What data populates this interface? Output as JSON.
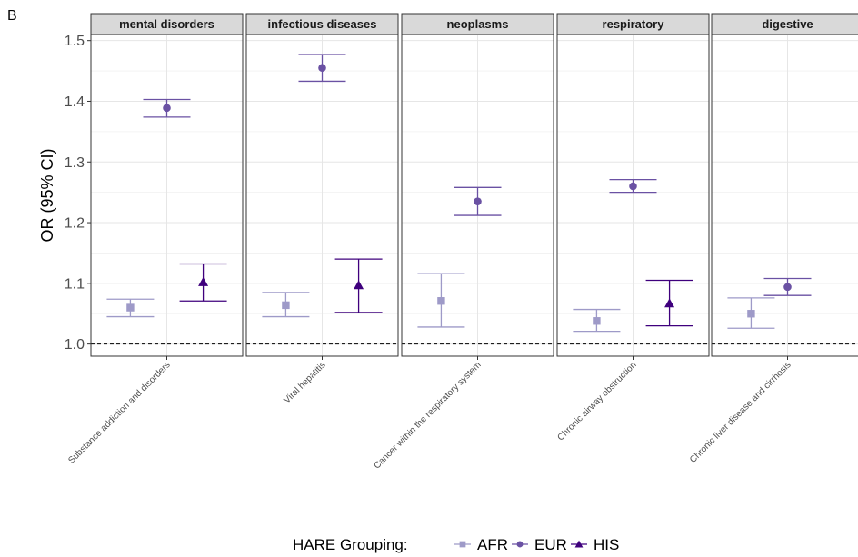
{
  "panel_label": "B",
  "chart_data": {
    "type": "scatter",
    "subtype": "point-range (odds ratio with 95% CI), faceted",
    "ylabel": "OR (95% CI)",
    "ylim": [
      0.98,
      1.51
    ],
    "yticks": [
      1.0,
      1.1,
      1.2,
      1.3,
      1.4,
      1.5
    ],
    "ytick_labels": [
      "1.0",
      "1.1",
      "1.2",
      "1.3",
      "1.4",
      "1.5"
    ],
    "reference_line": 1.0,
    "grid": true,
    "legend": {
      "title": "HARE Grouping:",
      "position": "bottom",
      "entries": [
        {
          "name": "AFR",
          "color": "#9e9ac8",
          "shape": "square"
        },
        {
          "name": "EUR",
          "color": "#6a51a3",
          "shape": "circle"
        },
        {
          "name": "HIS",
          "color": "#3f007d",
          "shape": "triangle"
        }
      ]
    },
    "facets": [
      {
        "strip": "mental disorders",
        "category": "Substance addiction and disorders",
        "points": [
          {
            "group": "AFR",
            "or": 1.06,
            "lo": 1.045,
            "hi": 1.074
          },
          {
            "group": "EUR",
            "or": 1.389,
            "lo": 1.374,
            "hi": 1.403
          },
          {
            "group": "HIS",
            "or": 1.102,
            "lo": 1.071,
            "hi": 1.132
          }
        ]
      },
      {
        "strip": "infectious diseases",
        "category": "Viral hepatitis",
        "points": [
          {
            "group": "AFR",
            "or": 1.064,
            "lo": 1.045,
            "hi": 1.085
          },
          {
            "group": "EUR",
            "or": 1.455,
            "lo": 1.433,
            "hi": 1.477
          },
          {
            "group": "HIS",
            "or": 1.097,
            "lo": 1.052,
            "hi": 1.14
          }
        ]
      },
      {
        "strip": "neoplasms",
        "category": "Cancer within the respiratory system",
        "points": [
          {
            "group": "AFR",
            "or": 1.071,
            "lo": 1.028,
            "hi": 1.116
          },
          {
            "group": "EUR",
            "or": 1.235,
            "lo": 1.212,
            "hi": 1.258
          }
        ]
      },
      {
        "strip": "respiratory",
        "category": "Chronic airway obstruction",
        "points": [
          {
            "group": "AFR",
            "or": 1.038,
            "lo": 1.021,
            "hi": 1.057
          },
          {
            "group": "EUR",
            "or": 1.26,
            "lo": 1.25,
            "hi": 1.271
          },
          {
            "group": "HIS",
            "or": 1.067,
            "lo": 1.03,
            "hi": 1.105
          }
        ]
      },
      {
        "strip": "digestive",
        "category": "Chronic liver disease and cirrhosis",
        "points": [
          {
            "group": "AFR",
            "or": 1.05,
            "lo": 1.026,
            "hi": 1.076
          },
          {
            "group": "EUR",
            "or": 1.094,
            "lo": 1.08,
            "hi": 1.108
          }
        ]
      }
    ]
  }
}
